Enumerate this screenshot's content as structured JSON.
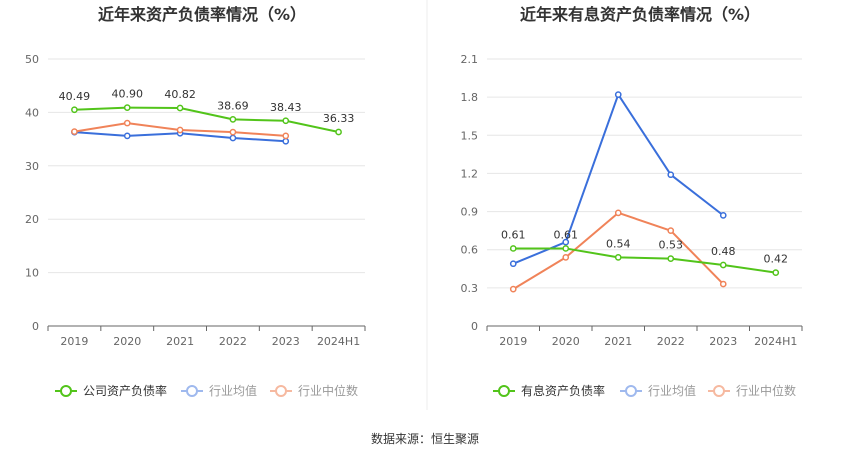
{
  "source_label": "数据来源：恒生聚源",
  "chart_data": [
    {
      "type": "line",
      "title": "近年来资产负债率情况（%）",
      "xlabel": "",
      "ylabel": "",
      "categories": [
        "2019",
        "2020",
        "2021",
        "2022",
        "2023",
        "2024H1"
      ],
      "ylim": [
        0,
        50
      ],
      "yticks": [
        "0",
        "10",
        "20",
        "30",
        "40",
        "50"
      ],
      "ytick_values": [
        0,
        10,
        20,
        30,
        40,
        50
      ],
      "grid": true,
      "legend_position": "bottom",
      "series": [
        {
          "name": "公司资产负债率",
          "color": "#52c41a",
          "values": [
            40.49,
            40.9,
            40.82,
            38.69,
            38.43,
            36.33
          ],
          "labels": [
            "40.49",
            "40.90",
            "40.82",
            "38.69",
            "38.43",
            "36.33"
          ],
          "legend_active": true
        },
        {
          "name": "行业均值",
          "color": "#3a6fdb",
          "values": [
            36.3,
            35.6,
            36.1,
            35.2,
            34.6,
            null
          ],
          "labels": [],
          "legend_active": false
        },
        {
          "name": "行业中位数",
          "color": "#f08359",
          "values": [
            36.4,
            38.0,
            36.7,
            36.3,
            35.6,
            null
          ],
          "labels": [],
          "legend_active": false
        }
      ]
    },
    {
      "type": "line",
      "title": "近年来有息资产负债率情况（%）",
      "xlabel": "",
      "ylabel": "",
      "categories": [
        "2019",
        "2020",
        "2021",
        "2022",
        "2023",
        "2024H1"
      ],
      "ylim": [
        0,
        2.1
      ],
      "yticks": [
        "0",
        "0.3",
        "0.6",
        "0.9",
        "1.2",
        "1.5",
        "1.8",
        "2.1"
      ],
      "ytick_values": [
        0,
        0.3,
        0.6,
        0.9,
        1.2,
        1.5,
        1.8,
        2.1
      ],
      "grid": true,
      "legend_position": "bottom",
      "series": [
        {
          "name": "有息资产负债率",
          "color": "#52c41a",
          "values": [
            0.61,
            0.61,
            0.54,
            0.53,
            0.48,
            0.42
          ],
          "labels": [
            "0.61",
            "0.61",
            "0.54",
            "0.53",
            "0.48",
            "0.42"
          ],
          "legend_active": true
        },
        {
          "name": "行业均值",
          "color": "#3a6fdb",
          "values": [
            0.49,
            0.66,
            1.82,
            1.19,
            0.87,
            null
          ],
          "labels": [],
          "legend_active": false
        },
        {
          "name": "行业中位数",
          "color": "#f08359",
          "values": [
            0.29,
            0.54,
            0.89,
            0.75,
            0.33,
            null
          ],
          "labels": [],
          "legend_active": false
        }
      ]
    }
  ]
}
